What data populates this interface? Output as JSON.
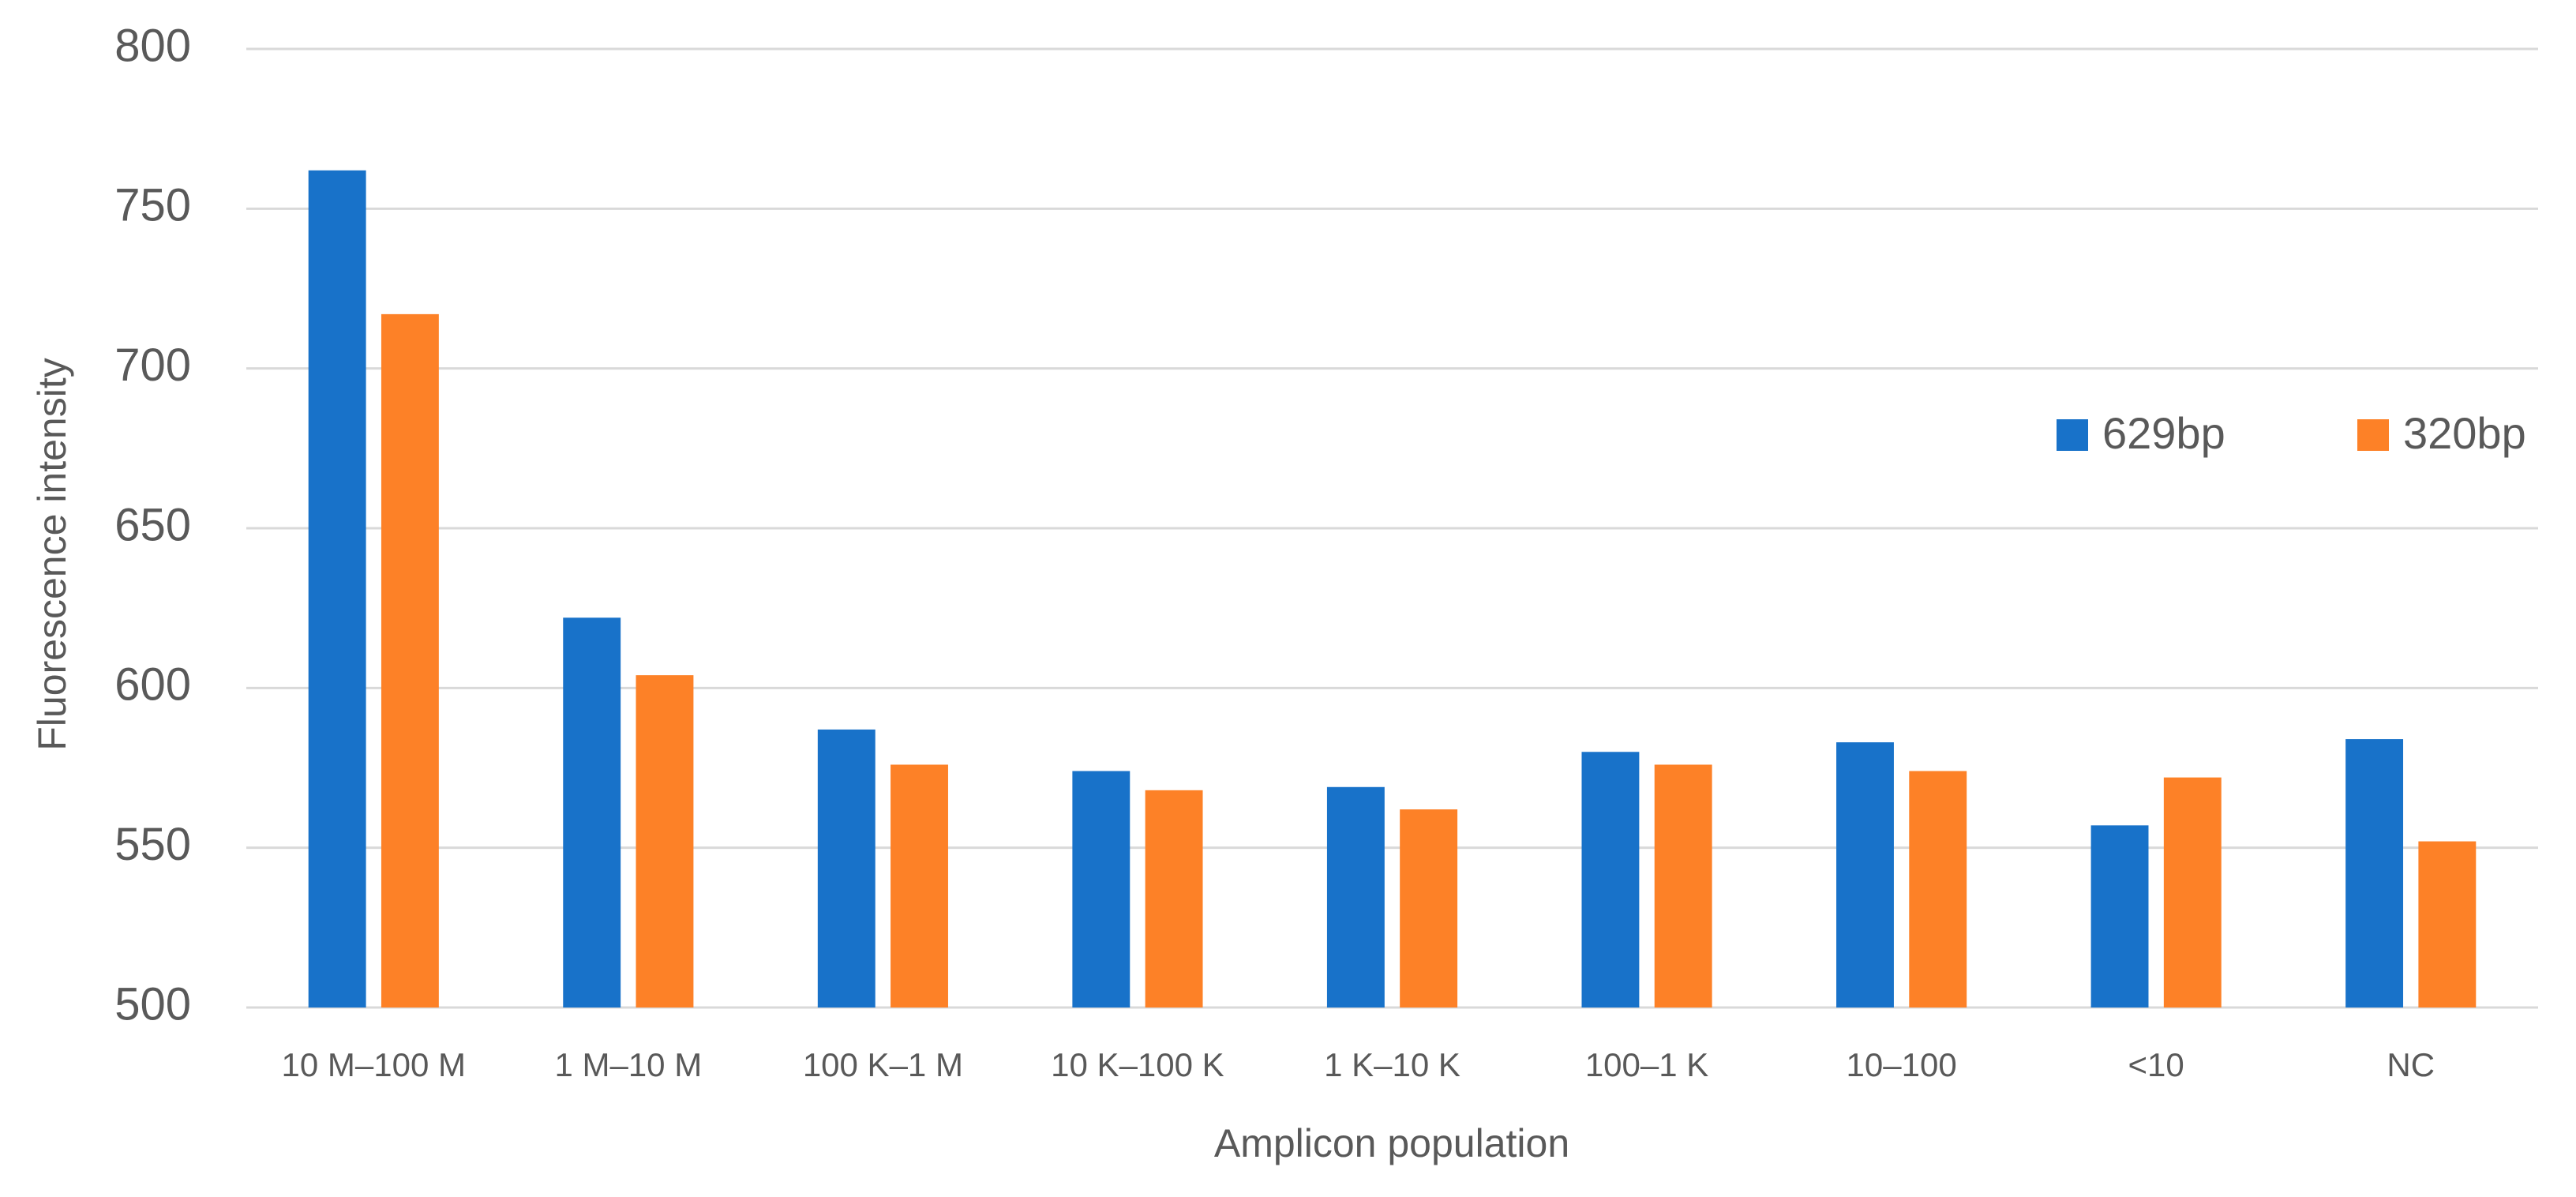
{
  "chart_data": {
    "type": "bar",
    "x_label": "Amplicon population",
    "y_label": "Fluorescence intensity",
    "categories": [
      "10 M–100 M",
      "1 M–10 M",
      "100 K–1 M",
      "10 K–100 K",
      "1 K–10 K",
      "100–1 K",
      "10–100",
      "<10",
      "NC"
    ],
    "series": [
      {
        "name": "629bp",
        "color": "#1872c9",
        "values": [
          762,
          622,
          587,
          574,
          569,
          580,
          583,
          557,
          584
        ]
      },
      {
        "name": "320bp",
        "color": "#fd8127",
        "values": [
          717,
          604,
          576,
          568,
          562,
          576,
          574,
          572,
          552
        ]
      }
    ],
    "ylim": [
      500,
      800
    ],
    "yticks": [
      500,
      550,
      600,
      650,
      700,
      750,
      800
    ],
    "grid": true,
    "legend": "right"
  }
}
